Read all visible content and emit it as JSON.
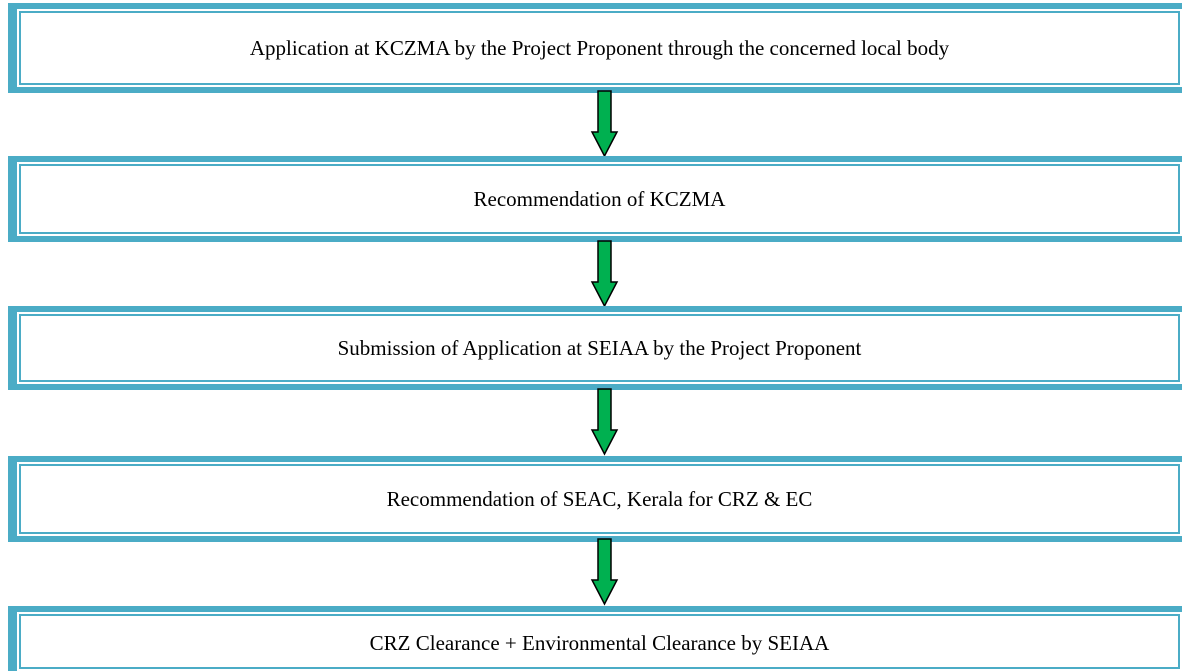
{
  "nodes": [
    {
      "label": "Application at KCZMA by the Project Proponent through the concerned local body"
    },
    {
      "label": "Recommendation of KCZMA"
    },
    {
      "label": "Submission of Application at SEIAA by the Project Proponent"
    },
    {
      "label": "Recommendation of SEAC, Kerala for CRZ & EC"
    },
    {
      "label": "CRZ Clearance + Environmental Clearance by SEIAA"
    }
  ]
}
